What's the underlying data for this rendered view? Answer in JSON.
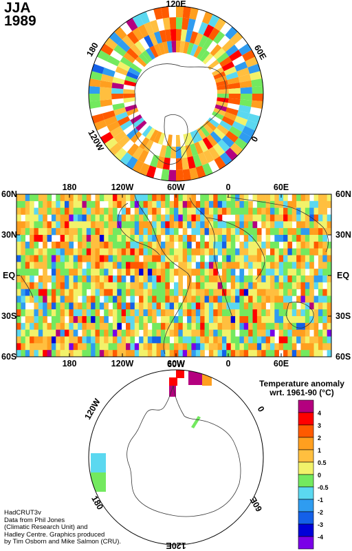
{
  "title": {
    "season": "JJA",
    "year": "1989"
  },
  "north_polar": {
    "labels": [
      "120E",
      "60E",
      "0",
      "120W",
      "180"
    ]
  },
  "world_map": {
    "lat_labels": [
      "60N",
      "30N",
      "EQ",
      "30S",
      "60S"
    ],
    "lon_labels": [
      "180",
      "120W",
      "60W",
      "0",
      "60E"
    ]
  },
  "south_polar": {
    "labels": [
      "60W",
      "120W",
      "0",
      "180",
      "60E",
      "120E"
    ]
  },
  "legend": {
    "title_line1": "Temperature anomaly",
    "title_line2": "wrt. 1961-90  (°C)",
    "bins": [
      {
        "label": "4",
        "color": "#b4007f"
      },
      {
        "label": "3",
        "color": "#ff0000"
      },
      {
        "label": "2",
        "color": "#ff5a00"
      },
      {
        "label": "1",
        "color": "#ff9f1f"
      },
      {
        "label": "0.5",
        "color": "#ffbf3f"
      },
      {
        "label": "0",
        "color": "#f2f26a"
      },
      {
        "label": "-0.5",
        "color": "#73e95f"
      },
      {
        "label": "-1",
        "color": "#5bd8f0"
      },
      {
        "label": "-2",
        "color": "#2f9cf0"
      },
      {
        "label": "-3",
        "color": "#1460e8"
      },
      {
        "label": "-4",
        "color": "#0000d8"
      },
      {
        "label": "",
        "color": "#7a00e8"
      }
    ]
  },
  "credits": [
    "HadCRUT3v",
    "Data from Phil Jones",
    "(Climatic Research Unit) and",
    "Hadley Centre.  Graphics produced",
    "by Tim Osborn and Mike Salmon (CRU)."
  ]
}
